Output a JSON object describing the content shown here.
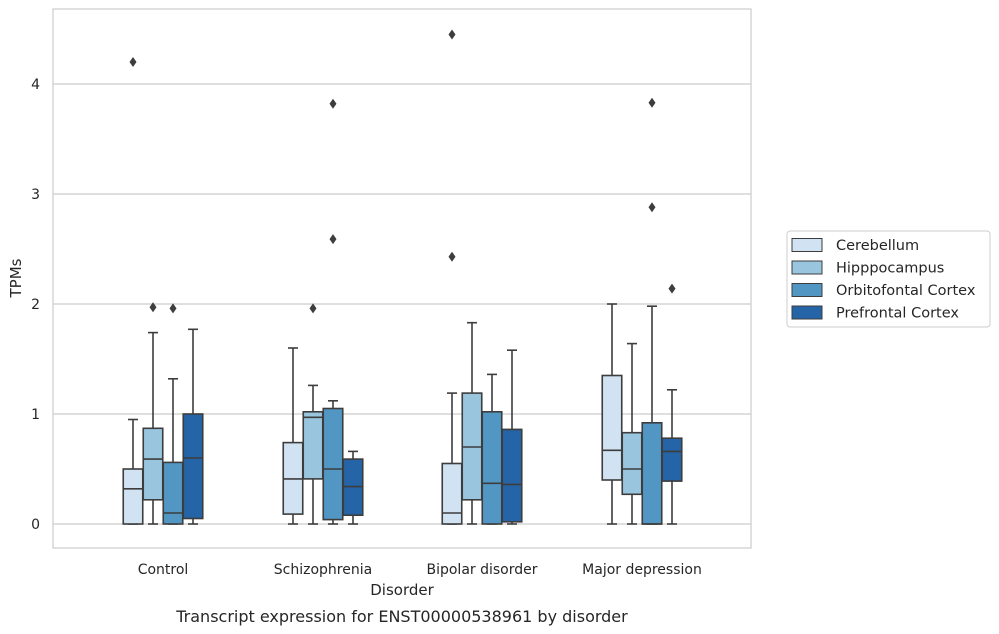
{
  "chart_data": {
    "type": "box",
    "title": "Transcript expression for ENST00000538961 by disorder",
    "xlabel": "Disorder",
    "ylabel": "TPMs",
    "categories": [
      "Control",
      "Schizophrenia",
      "Bipolar disorder",
      "Major depression"
    ],
    "ylim": [
      -0.22,
      4.68
    ],
    "yticks": [
      0,
      1,
      2,
      3,
      4
    ],
    "grid": "horizontal",
    "legend_position": "right",
    "series": [
      {
        "name": "Cerebellum",
        "color": "#d1e2f2",
        "boxes": [
          {
            "whislo": 0,
            "q1": 0,
            "med": 0.32,
            "q3": 0.5,
            "whishi": 0.95,
            "fliers": [
              4.2
            ]
          },
          {
            "whislo": 0,
            "q1": 0.09,
            "med": 0.41,
            "q3": 0.74,
            "whishi": 1.6,
            "fliers": []
          },
          {
            "whislo": 0,
            "q1": 0,
            "med": 0.1,
            "q3": 0.55,
            "whishi": 1.19,
            "fliers": [
              4.45,
              2.43
            ]
          },
          {
            "whislo": 0,
            "q1": 0.4,
            "med": 0.67,
            "q3": 1.35,
            "whishi": 2.0,
            "fliers": []
          }
        ]
      },
      {
        "name": "Hipppocampus",
        "color": "#9ac5df",
        "boxes": [
          {
            "whislo": 0,
            "q1": 0.22,
            "med": 0.59,
            "q3": 0.87,
            "whishi": 1.74,
            "fliers": [
              1.97
            ]
          },
          {
            "whislo": 0,
            "q1": 0.41,
            "med": 0.97,
            "q3": 1.02,
            "whishi": 1.26,
            "fliers": [
              1.96
            ]
          },
          {
            "whislo": 0,
            "q1": 0.22,
            "med": 0.7,
            "q3": 1.19,
            "whishi": 1.83,
            "fliers": []
          },
          {
            "whislo": 0,
            "q1": 0.27,
            "med": 0.5,
            "q3": 0.83,
            "whishi": 1.64,
            "fliers": []
          }
        ]
      },
      {
        "name": "Orbitofontal Cortex",
        "color": "#5296c4",
        "boxes": [
          {
            "whislo": 0,
            "q1": 0,
            "med": 0.1,
            "q3": 0.56,
            "whishi": 1.32,
            "fliers": [
              1.96
            ]
          },
          {
            "whislo": 0,
            "q1": 0.04,
            "med": 0.5,
            "q3": 1.05,
            "whishi": 1.12,
            "fliers": [
              3.82,
              2.59
            ]
          },
          {
            "whislo": 0,
            "q1": 0,
            "med": 0.37,
            "q3": 1.02,
            "whishi": 1.36,
            "fliers": []
          },
          {
            "whislo": 0,
            "q1": 0,
            "med": 0.0,
            "q3": 0.92,
            "whishi": 1.98,
            "fliers": [
              3.83,
              2.88
            ]
          }
        ]
      },
      {
        "name": "Prefrontal Cortex",
        "color": "#2564a6",
        "boxes": [
          {
            "whislo": 0,
            "q1": 0.05,
            "med": 0.6,
            "q3": 1.0,
            "whishi": 1.77,
            "fliers": []
          },
          {
            "whislo": 0,
            "q1": 0.08,
            "med": 0.34,
            "q3": 0.59,
            "whishi": 0.66,
            "fliers": []
          },
          {
            "whislo": 0,
            "q1": 0.02,
            "med": 0.36,
            "q3": 0.86,
            "whishi": 1.58,
            "fliers": []
          },
          {
            "whislo": 0,
            "q1": 0.39,
            "med": 0.66,
            "q3": 0.78,
            "whishi": 1.22,
            "fliers": [
              2.14
            ]
          }
        ]
      }
    ]
  }
}
